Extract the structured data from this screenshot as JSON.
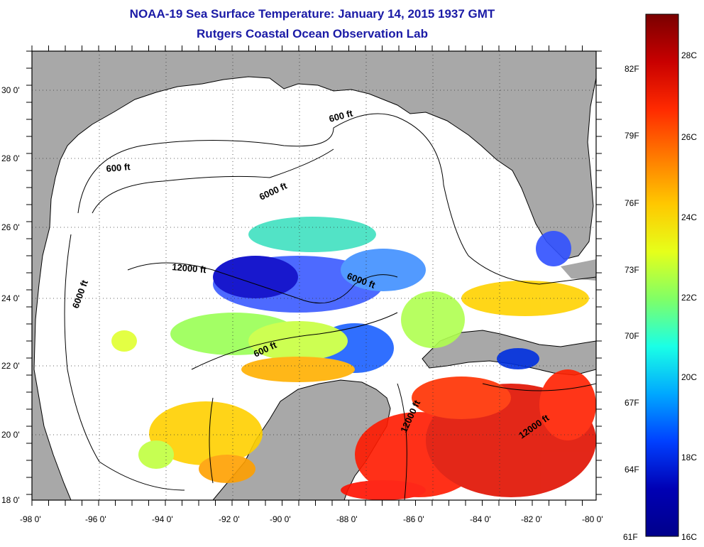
{
  "title": "NOAA-19 Sea Surface Temperature:  January 14, 2015 1937 GMT",
  "subtitle": "Rutgers Coastal Ocean Observation Lab",
  "axes": {
    "x_ticks": [
      "-98 0'",
      "-96 0'",
      "-94 0'",
      "-92 0'",
      "-90 0'",
      "-88 0'",
      "-86 0'",
      "-84 0'",
      "-82 0'",
      "-80 0'"
    ],
    "y_ticks": [
      "30 0'",
      "28 0'",
      "26 0'",
      "24 0'",
      "22 0'",
      "20 0'",
      "18 0'"
    ]
  },
  "contour_labels": [
    "600 ft",
    "600 ft",
    "6000 ft",
    "6000 ft",
    "12000 ft",
    "6000 ft",
    "600 ft",
    "12000 ft",
    "12000 ft"
  ],
  "colorbar": {
    "fahrenheit": [
      "82F",
      "79F",
      "76F",
      "73F",
      "70F",
      "67F",
      "64F",
      "61F"
    ],
    "celsius": [
      "28C",
      "26C",
      "24C",
      "22C",
      "20C",
      "18C",
      "16C"
    ],
    "colors": [
      "#7a0000",
      "#c80000",
      "#ff2a00",
      "#ff7a00",
      "#ffc800",
      "#e6ff1a",
      "#80ff66",
      "#1affe6",
      "#00a8ff",
      "#0040ff",
      "#0000b4",
      "#00008b"
    ]
  },
  "colors": {
    "land": "#a8a8a8",
    "ocean_nodata": "#ffffff",
    "title": "#1a1aa6"
  }
}
